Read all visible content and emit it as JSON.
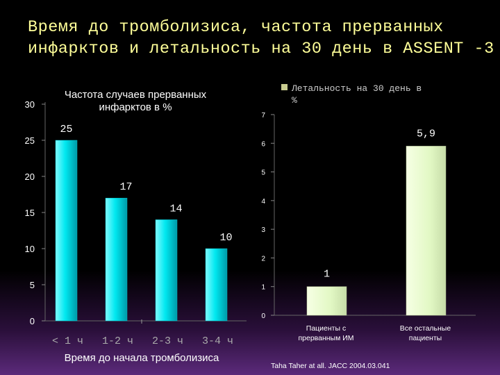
{
  "slide": {
    "title": "Время до тромболизиса, частота прерванных инфарктов и летальность на 30 день в ASSENT -3",
    "footnote": "Taha Taher at all. JACC 2004.03.041"
  },
  "colors": {
    "bar": "#00e8f0",
    "title": "#ffff99",
    "legend_swatch": "#c8cc90",
    "bar_right": "#e8ffd0"
  },
  "chart_data": [
    {
      "type": "bar",
      "title": "Частота случаев прерванных инфарктов в %",
      "categories": [
        "< 1 ч",
        "1-2 ч",
        "2-3 ч",
        "3-4 ч"
      ],
      "values": [
        25,
        17,
        14,
        10
      ],
      "data_labels": [
        "25",
        "17",
        "14",
        "10"
      ],
      "xlabel": "Время до начала тромболизиса",
      "ylabel": "",
      "ylim": [
        0,
        30
      ],
      "yticks": [
        0,
        5,
        10,
        15,
        20,
        25,
        30
      ],
      "grid": false
    },
    {
      "type": "bar",
      "title": "",
      "legend": "Летальность на 30 день в %",
      "legend_position": "top-right",
      "categories": [
        "Пациенты с прерванным ИМ",
        "Все остальные пациенты"
      ],
      "values": [
        1,
        5.9
      ],
      "data_labels": [
        "1",
        "5,9"
      ],
      "ylim": [
        0,
        7
      ],
      "yticks": [
        0,
        1,
        2,
        3,
        4,
        5,
        6,
        7
      ],
      "grid": false
    }
  ]
}
